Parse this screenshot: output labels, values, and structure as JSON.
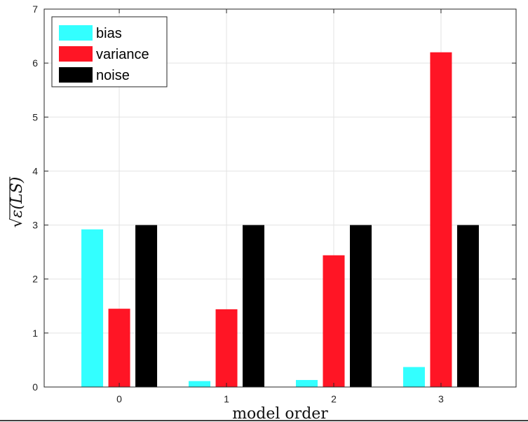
{
  "chart_data": {
    "type": "bar",
    "title": "",
    "xlabel": "model order",
    "ylabel": "√ε(LS)",
    "ylabel_parts": {
      "radical": "√",
      "epsilon": "ε",
      "args": "(LS)"
    },
    "categories": [
      "0",
      "1",
      "2",
      "3"
    ],
    "series": [
      {
        "name": "bias",
        "color": "#33FFFF",
        "values": [
          2.92,
          0.11,
          0.13,
          0.37
        ]
      },
      {
        "name": "variance",
        "color": "#FF1525",
        "values": [
          1.45,
          1.44,
          2.44,
          6.2
        ]
      },
      {
        "name": "noise",
        "color": "#000000",
        "values": [
          3.0,
          3.0,
          3.0,
          3.0
        ]
      }
    ],
    "ylim": [
      0,
      7
    ],
    "yticks": [
      0,
      1,
      2,
      3,
      4,
      5,
      6,
      7
    ],
    "grid": true,
    "legend_position": "top-left"
  }
}
